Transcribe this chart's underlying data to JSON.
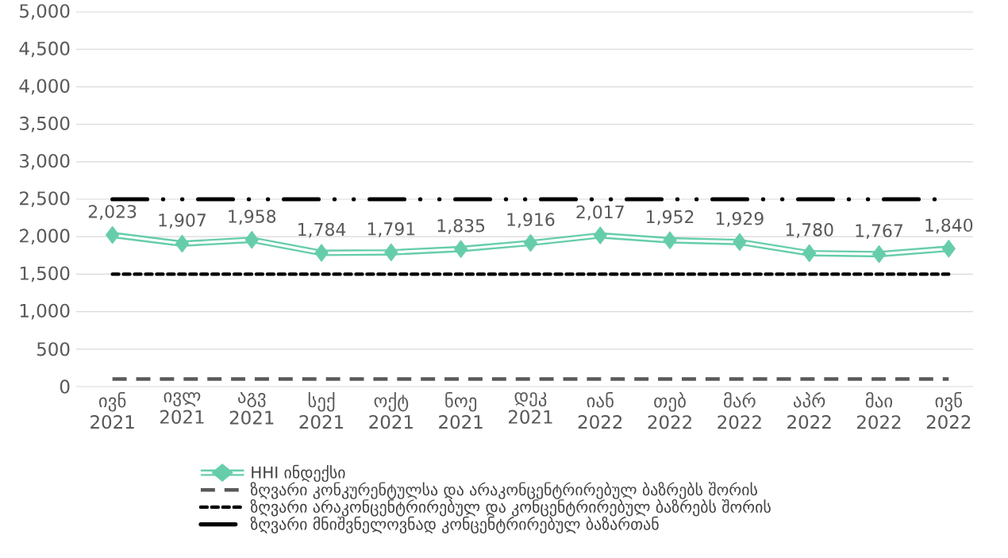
{
  "chart_data": {
    "type": "line",
    "categories": [
      "ივნ 2021",
      "ივლ 2021",
      "აგვ 2021",
      "სექ 2021",
      "ოქტ 2021",
      "ნოე 2021",
      "დეკ 2021",
      "იან 2022",
      "თებ 2022",
      "მარ 2022",
      "აპრ 2022",
      "მაი 2022",
      "ივნ 2022"
    ],
    "series": [
      {
        "name": "HHI ინდექსი",
        "color": "#66cdaa",
        "values": [
          2023,
          1907,
          1958,
          1784,
          1791,
          1835,
          1916,
          2017,
          1952,
          1929,
          1780,
          1767,
          1840
        ],
        "value_labels": [
          "2,023",
          "1,907",
          "1,958",
          "1,784",
          "1,791",
          "1,835",
          "1,916",
          "2,017",
          "1,952",
          "1,929",
          "1,780",
          "1,767",
          "1,840"
        ]
      }
    ],
    "ref_lines": [
      {
        "axis": "y",
        "value": 100,
        "label": "ზღვარი კონკურენტულსა და არაკონცენტრირებულ ბაზრებს შორის",
        "color": "#595959",
        "line_style": "dashed"
      },
      {
        "axis": "y",
        "value": 1500,
        "label": "ზღვარი არაკონცენტრირებულ და კონცენტრირებულ ბაზრებს შორის",
        "color": "#000000",
        "line_style": "dotted"
      },
      {
        "axis": "y",
        "value": 2500,
        "label": "ზღვარი მნიშვნელოვნად კონცენტრირებულ ბაზართან",
        "color": "#000000",
        "line_style": "dashdotdot"
      }
    ],
    "ylim": [
      0,
      5000
    ],
    "yticks": [
      {
        "value": 0,
        "label": "0"
      },
      {
        "value": 500,
        "label": "500"
      },
      {
        "value": 1000,
        "label": "1,000"
      },
      {
        "value": 1500,
        "label": "1,500"
      },
      {
        "value": 2000,
        "label": "2,000"
      },
      {
        "value": 2500,
        "label": "2,500"
      },
      {
        "value": 3000,
        "label": "3,000"
      },
      {
        "value": 3500,
        "label": "3,500"
      },
      {
        "value": 4000,
        "label": "4,000"
      },
      {
        "value": 4500,
        "label": "4,500"
      },
      {
        "value": 5000,
        "label": "5,000"
      }
    ],
    "grid": "y",
    "legend": "bottom",
    "marker": "diamond",
    "line_style": "solid"
  }
}
